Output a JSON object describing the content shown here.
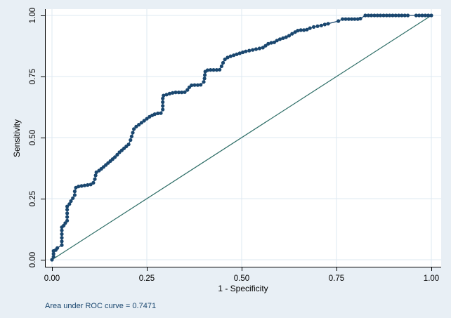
{
  "figure": {
    "kind": "stata-roc-plot",
    "note": "Area under ROC curve = 0.7471",
    "x_axis": {
      "title": "1 - Specificity",
      "labels": [
        "0.00",
        "0.25",
        "0.50",
        "0.75",
        "1.00"
      ],
      "tick_values": [
        0,
        0.25,
        0.5,
        0.75,
        1.0
      ]
    },
    "y_axis": {
      "title": "Sensitivity",
      "labels": [
        "0.00",
        "0.25",
        "0.50",
        "0.75",
        "1.00"
      ],
      "tick_values": [
        0,
        0.25,
        0.5,
        0.75,
        1.0
      ]
    },
    "colors": {
      "background": "#e8eff5",
      "plot_background": "#ffffff",
      "gridline": "#dde9f2",
      "axis": "#000000",
      "tick_text": "#000000",
      "roc_curve": "#1a476f",
      "reference_line": "#2d6d66",
      "note_text": "#1a476f"
    }
  },
  "chart_data": {
    "type": "line",
    "title": "",
    "xlabel": "1 - Specificity",
    "ylabel": "Sensitivity",
    "xlim": [
      0,
      1
    ],
    "ylim": [
      0,
      1
    ],
    "x_ticks": [
      0,
      0.25,
      0.5,
      0.75,
      1.0
    ],
    "y_ticks": [
      0,
      0.25,
      0.5,
      0.75,
      1.0
    ],
    "grid": true,
    "legend": "none",
    "auc": 0.7471,
    "annotation": "Area under ROC curve = 0.7471",
    "series": [
      {
        "name": "ROC curve",
        "style": "step-scatter",
        "color": "#1a476f",
        "marker": "circle",
        "points": [
          [
            0.0,
            0.0
          ],
          [
            0.004,
            0.012
          ],
          [
            0.004,
            0.024
          ],
          [
            0.004,
            0.036
          ],
          [
            0.01,
            0.04
          ],
          [
            0.014,
            0.048
          ],
          [
            0.026,
            0.06
          ],
          [
            0.026,
            0.075
          ],
          [
            0.026,
            0.09
          ],
          [
            0.026,
            0.105
          ],
          [
            0.026,
            0.12
          ],
          [
            0.026,
            0.133
          ],
          [
            0.031,
            0.14
          ],
          [
            0.035,
            0.15
          ],
          [
            0.04,
            0.16
          ],
          [
            0.04,
            0.175
          ],
          [
            0.04,
            0.19
          ],
          [
            0.04,
            0.205
          ],
          [
            0.04,
            0.218
          ],
          [
            0.046,
            0.228
          ],
          [
            0.05,
            0.24
          ],
          [
            0.055,
            0.252
          ],
          [
            0.06,
            0.265
          ],
          [
            0.06,
            0.28
          ],
          [
            0.063,
            0.295
          ],
          [
            0.07,
            0.3
          ],
          [
            0.078,
            0.302
          ],
          [
            0.086,
            0.304
          ],
          [
            0.094,
            0.306
          ],
          [
            0.102,
            0.308
          ],
          [
            0.109,
            0.315
          ],
          [
            0.113,
            0.33
          ],
          [
            0.115,
            0.345
          ],
          [
            0.117,
            0.358
          ],
          [
            0.124,
            0.365
          ],
          [
            0.13,
            0.372
          ],
          [
            0.136,
            0.38
          ],
          [
            0.142,
            0.388
          ],
          [
            0.148,
            0.396
          ],
          [
            0.154,
            0.404
          ],
          [
            0.16,
            0.412
          ],
          [
            0.166,
            0.42
          ],
          [
            0.172,
            0.43
          ],
          [
            0.178,
            0.44
          ],
          [
            0.184,
            0.448
          ],
          [
            0.19,
            0.456
          ],
          [
            0.196,
            0.464
          ],
          [
            0.202,
            0.472
          ],
          [
            0.207,
            0.49
          ],
          [
            0.21,
            0.505
          ],
          [
            0.213,
            0.52
          ],
          [
            0.216,
            0.535
          ],
          [
            0.222,
            0.545
          ],
          [
            0.229,
            0.553
          ],
          [
            0.236,
            0.561
          ],
          [
            0.243,
            0.569
          ],
          [
            0.25,
            0.577
          ],
          [
            0.257,
            0.585
          ],
          [
            0.264,
            0.591
          ],
          [
            0.271,
            0.596
          ],
          [
            0.279,
            0.599
          ],
          [
            0.287,
            0.6
          ],
          [
            0.292,
            0.615
          ],
          [
            0.292,
            0.63
          ],
          [
            0.292,
            0.645
          ],
          [
            0.292,
            0.66
          ],
          [
            0.294,
            0.672
          ],
          [
            0.302,
            0.676
          ],
          [
            0.31,
            0.68
          ],
          [
            0.318,
            0.683
          ],
          [
            0.326,
            0.685
          ],
          [
            0.334,
            0.685
          ],
          [
            0.342,
            0.685
          ],
          [
            0.35,
            0.686
          ],
          [
            0.357,
            0.695
          ],
          [
            0.362,
            0.706
          ],
          [
            0.368,
            0.714
          ],
          [
            0.376,
            0.715
          ],
          [
            0.384,
            0.715
          ],
          [
            0.392,
            0.716
          ],
          [
            0.4,
            0.728
          ],
          [
            0.402,
            0.742
          ],
          [
            0.403,
            0.756
          ],
          [
            0.404,
            0.77
          ],
          [
            0.41,
            0.776
          ],
          [
            0.418,
            0.777
          ],
          [
            0.426,
            0.777
          ],
          [
            0.434,
            0.777
          ],
          [
            0.442,
            0.778
          ],
          [
            0.447,
            0.792
          ],
          [
            0.451,
            0.806
          ],
          [
            0.456,
            0.82
          ],
          [
            0.463,
            0.828
          ],
          [
            0.471,
            0.833
          ],
          [
            0.479,
            0.837
          ],
          [
            0.487,
            0.841
          ],
          [
            0.495,
            0.845
          ],
          [
            0.503,
            0.849
          ],
          [
            0.511,
            0.853
          ],
          [
            0.52,
            0.856
          ],
          [
            0.529,
            0.859
          ],
          [
            0.538,
            0.862
          ],
          [
            0.547,
            0.865
          ],
          [
            0.556,
            0.868
          ],
          [
            0.563,
            0.876
          ],
          [
            0.57,
            0.884
          ],
          [
            0.578,
            0.888
          ],
          [
            0.586,
            0.89
          ],
          [
            0.593,
            0.897
          ],
          [
            0.601,
            0.903
          ],
          [
            0.609,
            0.907
          ],
          [
            0.617,
            0.911
          ],
          [
            0.625,
            0.917
          ],
          [
            0.633,
            0.925
          ],
          [
            0.641,
            0.932
          ],
          [
            0.648,
            0.938
          ],
          [
            0.656,
            0.94
          ],
          [
            0.664,
            0.94
          ],
          [
            0.672,
            0.942
          ],
          [
            0.68,
            0.948
          ],
          [
            0.69,
            0.953
          ],
          [
            0.7,
            0.956
          ],
          [
            0.71,
            0.959
          ],
          [
            0.719,
            0.963
          ],
          [
            0.728,
            0.966
          ],
          [
            0.755,
            0.977
          ],
          [
            0.766,
            0.985
          ],
          [
            0.774,
            0.985
          ],
          [
            0.782,
            0.985
          ],
          [
            0.79,
            0.985
          ],
          [
            0.798,
            0.985
          ],
          [
            0.806,
            0.985
          ],
          [
            0.813,
            0.987
          ],
          [
            0.826,
            1.0
          ],
          [
            0.834,
            1.0
          ],
          [
            0.842,
            1.0
          ],
          [
            0.85,
            1.0
          ],
          [
            0.858,
            1.0
          ],
          [
            0.866,
            1.0
          ],
          [
            0.874,
            1.0
          ],
          [
            0.882,
            1.0
          ],
          [
            0.89,
            1.0
          ],
          [
            0.898,
            1.0
          ],
          [
            0.906,
            1.0
          ],
          [
            0.914,
            1.0
          ],
          [
            0.922,
            1.0
          ],
          [
            0.93,
            1.0
          ],
          [
            0.938,
            1.0
          ],
          [
            0.96,
            1.0
          ],
          [
            0.968,
            1.0
          ],
          [
            0.976,
            1.0
          ],
          [
            0.984,
            1.0
          ],
          [
            0.992,
            1.0
          ],
          [
            1.0,
            1.0
          ]
        ]
      },
      {
        "name": "Reference line",
        "style": "line",
        "color": "#2d6d66",
        "marker": "none",
        "points": [
          [
            0,
            0
          ],
          [
            1,
            1
          ]
        ]
      }
    ]
  }
}
